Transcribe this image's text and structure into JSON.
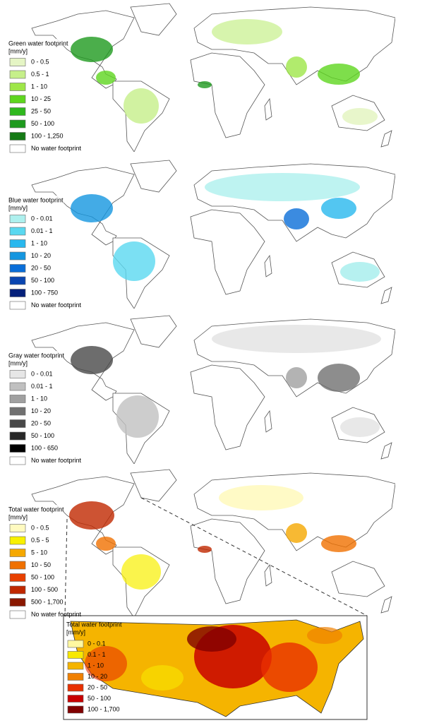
{
  "panels": [
    {
      "title": "Green water footprint",
      "unit": "[mm/y]",
      "no_data": "No water footprint",
      "items": [
        {
          "label": "0 - 0.5",
          "color": "#e5f5c5"
        },
        {
          "label": "0.5 - 1",
          "color": "#c6ef8a"
        },
        {
          "label": "1 - 10",
          "color": "#9ee648"
        },
        {
          "label": "10 - 25",
          "color": "#5ed61e"
        },
        {
          "label": "25 - 50",
          "color": "#2fb81e"
        },
        {
          "label": "50 - 100",
          "color": "#1e9a1e"
        },
        {
          "label": "100 - 1,250",
          "color": "#157a15"
        }
      ]
    },
    {
      "title": "Blue water footprint",
      "unit": "[mm/y]",
      "no_data": "No water footprint",
      "items": [
        {
          "label": "0 - 0.01",
          "color": "#aef0ee"
        },
        {
          "label": "0.01 - 1",
          "color": "#5ad8f0"
        },
        {
          "label": "1 - 10",
          "color": "#28b8ee"
        },
        {
          "label": "10 - 20",
          "color": "#1496e0"
        },
        {
          "label": "20 - 50",
          "color": "#0a6ed8"
        },
        {
          "label": "50 - 100",
          "color": "#0a46b0"
        },
        {
          "label": "100 - 750",
          "color": "#05207a"
        }
      ]
    },
    {
      "title": "Gray water footprint",
      "unit": "[mm/y]",
      "no_data": "No water footprint",
      "items": [
        {
          "label": "0 - 0.01",
          "color": "#e6e6e6"
        },
        {
          "label": "0.01 - 1",
          "color": "#c0c0c0"
        },
        {
          "label": "1 - 10",
          "color": "#a0a0a0"
        },
        {
          "label": "10 - 20",
          "color": "#707070"
        },
        {
          "label": "20 - 50",
          "color": "#484848"
        },
        {
          "label": "50 - 100",
          "color": "#282828"
        },
        {
          "label": "100 - 650",
          "color": "#000000"
        }
      ]
    },
    {
      "title": "Total water footprint",
      "unit": "[mm/y]",
      "no_data": "No water footprint",
      "items": [
        {
          "label": "0 - 0.5",
          "color": "#fffac0"
        },
        {
          "label": "0.5 - 5",
          "color": "#f8f000"
        },
        {
          "label": "5 - 10",
          "color": "#f5a800"
        },
        {
          "label": "10 - 50",
          "color": "#f07000"
        },
        {
          "label": "50 - 100",
          "color": "#e84000"
        },
        {
          "label": "100 - 500",
          "color": "#c02800"
        },
        {
          "label": "500 - 1,700",
          "color": "#8a1800"
        }
      ]
    }
  ],
  "inset": {
    "title": "Total water footprint",
    "unit": "[mm/y]",
    "items": [
      {
        "label": "0 - 0.1",
        "color": "#fff8a0"
      },
      {
        "label": "0.1 - 1",
        "color": "#f8e800"
      },
      {
        "label": "1 - 10",
        "color": "#f5b400"
      },
      {
        "label": "10 - 20",
        "color": "#f08000"
      },
      {
        "label": "20 - 50",
        "color": "#e83000"
      },
      {
        "label": "50 - 100",
        "color": "#c80000"
      },
      {
        "label": "100 - 1,700",
        "color": "#800000"
      }
    ]
  }
}
